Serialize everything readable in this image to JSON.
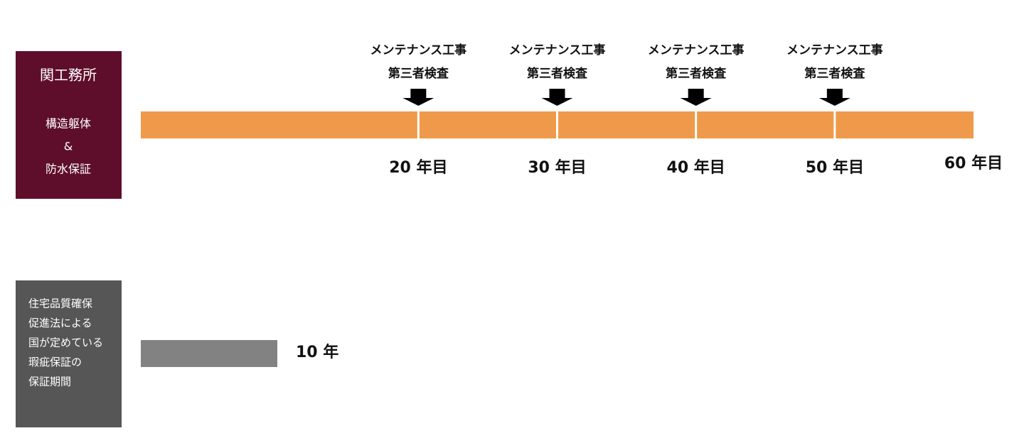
{
  "structure": {
    "title": "関工務所",
    "lines": [
      "構造躯体",
      "&",
      "防水保証"
    ],
    "milestones": [
      {
        "work": "メンテナンス工事",
        "inspection": "第三者検査",
        "year": "20 年目"
      },
      {
        "work": "メンテナンス工事",
        "inspection": "第三者検査",
        "year": "30 年目"
      },
      {
        "work": "メンテナンス工事",
        "inspection": "第三者検査",
        "year": "40 年目"
      },
      {
        "work": "メンテナンス工事",
        "inspection": "第三者検査",
        "year": "50 年目"
      }
    ],
    "end_label": "60 年目"
  },
  "warranty": {
    "lines": [
      "住宅品質確保",
      "促進法による",
      "国が定めている",
      "瑕疵保証の",
      "保証期間"
    ],
    "bar_label": "10 年"
  }
}
